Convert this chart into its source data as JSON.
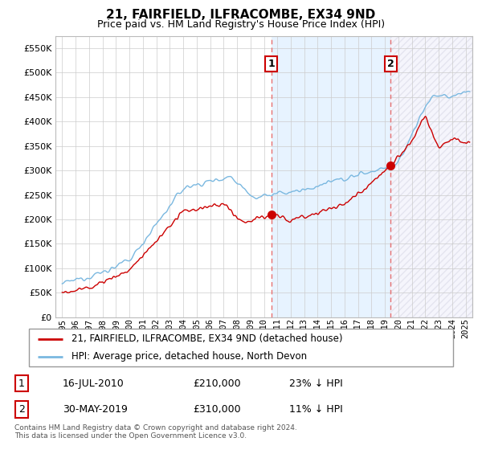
{
  "title": "21, FAIRFIELD, ILFRACOMBE, EX34 9ND",
  "subtitle": "Price paid vs. HM Land Registry's House Price Index (HPI)",
  "ytick_values": [
    0,
    50000,
    100000,
    150000,
    200000,
    250000,
    300000,
    350000,
    400000,
    450000,
    500000,
    550000
  ],
  "ylim": [
    0,
    575000
  ],
  "hpi_color": "#7ab8e0",
  "price_color": "#cc0000",
  "vline_color": "#e87070",
  "shade_color": "#ddeeff",
  "sale1_year": 2010.54,
  "sale1_price": 210000,
  "sale1_label": "1",
  "sale2_year": 2019.41,
  "sale2_price": 310000,
  "sale2_label": "2",
  "legend_line1": "21, FAIRFIELD, ILFRACOMBE, EX34 9ND (detached house)",
  "legend_line2": "HPI: Average price, detached house, North Devon",
  "table_row1": [
    "1",
    "16-JUL-2010",
    "£210,000",
    "23% ↓ HPI"
  ],
  "table_row2": [
    "2",
    "30-MAY-2019",
    "£310,000",
    "11% ↓ HPI"
  ],
  "footnote": "Contains HM Land Registry data © Crown copyright and database right 2024.\nThis data is licensed under the Open Government Licence v3.0.",
  "xstart": 1994.5,
  "xend": 2025.5
}
